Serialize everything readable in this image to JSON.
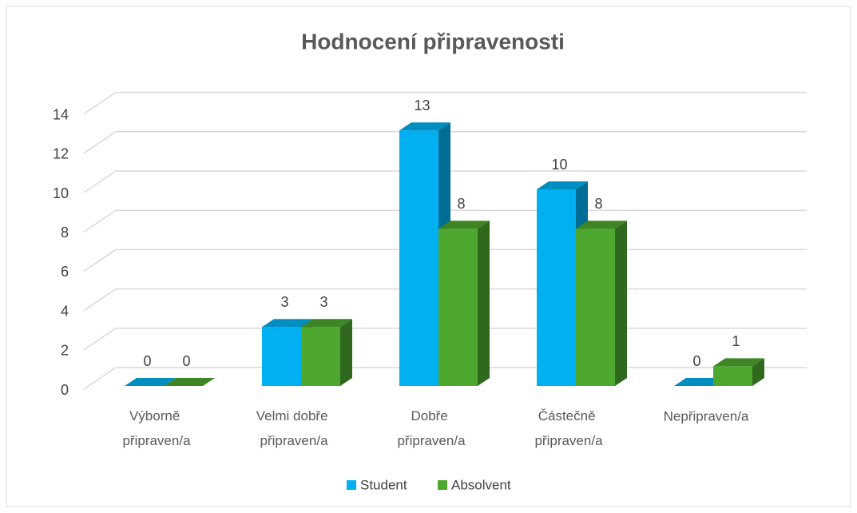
{
  "chart_data": {
    "type": "bar3d",
    "title": "Hodnocení připravenosti",
    "categories": [
      "Výborně připraven/a",
      "Velmi dobře připraven/a",
      "Dobře připraven/a",
      "Částečně připraven/a",
      "Nepřipraven/a"
    ],
    "series": [
      {
        "name": "Student",
        "color": "#00b0f0",
        "values": [
          0,
          3,
          13,
          10,
          0
        ]
      },
      {
        "name": "Absolvent",
        "color": "#4ea72e",
        "values": [
          0,
          3,
          8,
          8,
          1
        ]
      }
    ],
    "ylim": [
      0,
      14
    ],
    "yticks": [
      0,
      2,
      4,
      6,
      8,
      10,
      12,
      14
    ],
    "grid": true,
    "legend": "bottom"
  }
}
